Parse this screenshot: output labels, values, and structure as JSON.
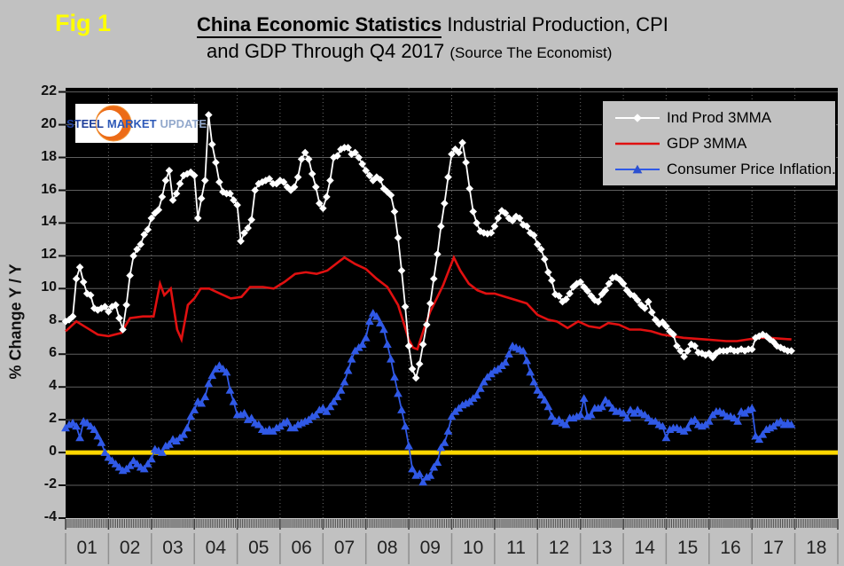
{
  "fig_label": "Fig 1",
  "title": {
    "line1_bold": "China Economic Statistics",
    "line1_rest": " Industrial Production, CPI",
    "line2_main": "and GDP Through Q4 2017 ",
    "line2_source": "(Source The Economist)"
  },
  "logo": {
    "word1": "STEEL",
    "word2": "MARKET",
    "word3": "UPDATE"
  },
  "y_axis": {
    "label": "% Change Y / Y",
    "tick_labels": [
      "22",
      "20",
      "18",
      "16",
      "14",
      "12",
      "10",
      "8",
      "6",
      "4",
      "2",
      "0",
      "-2",
      "-4"
    ]
  },
  "x_axis": {
    "tick_labels": [
      "01",
      "02",
      "03",
      "04",
      "05",
      "06",
      "07",
      "08",
      "09",
      "10",
      "11",
      "12",
      "13",
      "14",
      "15",
      "16",
      "17",
      "18"
    ]
  },
  "colors": {
    "background": "#c1c1c1",
    "plot_background": "#000000",
    "grid": "#5e5e5e",
    "grid_vertical": "#6b6b6b",
    "zero_line": "#FFD700",
    "ind_prod": "#FFFFFF",
    "gdp": "#E01010",
    "cpi": "#3059E6",
    "fig_label": "#FFFF00"
  },
  "chart_data": {
    "type": "line",
    "title": "China Economic Statistics Industrial Production, CPI and GDP Through Q4 2017 (Source The Economist)",
    "ylabel": "% Change Y / Y",
    "ylim": [
      -4,
      22
    ],
    "y_tick_step": 2,
    "x_range_years": [
      2001,
      2019
    ],
    "grid": true,
    "legend_position": "top-right",
    "zero_line": {
      "value": 0,
      "color": "#FFD700"
    },
    "series": [
      {
        "name": "Ind Prod 3MMA",
        "color": "#FFFFFF",
        "marker": "diamond",
        "interval": "monthly",
        "values_by_year": {
          "2001": [
            8.0,
            8.1,
            8.3,
            10.6,
            11.3,
            10.4,
            9.7,
            9.6,
            8.8,
            8.7,
            8.8,
            8.9
          ],
          "2002": [
            8.6,
            8.9,
            9.0,
            8.2,
            7.5,
            9.0,
            10.8,
            12.0,
            12.4,
            12.7,
            13.3,
            13.6
          ],
          "2003": [
            14.3,
            14.6,
            14.8,
            15.6,
            16.6,
            17.2,
            15.4,
            15.8,
            16.4,
            16.9,
            17.0,
            17.1
          ],
          "2004": [
            16.9,
            14.3,
            15.5,
            16.6,
            20.6,
            18.8,
            17.7,
            16.5,
            15.9,
            15.8,
            15.8,
            15.4
          ],
          "2005": [
            15.1,
            12.9,
            13.4,
            13.7,
            14.2,
            16.0,
            16.4,
            16.5,
            16.6,
            16.7,
            16.4,
            16.4
          ],
          "2006": [
            16.6,
            16.5,
            16.2,
            16.0,
            16.2,
            16.8,
            17.9,
            18.3,
            17.9,
            17.0,
            16.2,
            15.2
          ],
          "2007": [
            14.9,
            15.6,
            16.6,
            18.0,
            18.1,
            18.5,
            18.6,
            18.6,
            18.2,
            18.3,
            18.0,
            17.6
          ],
          "2008": [
            17.2,
            16.9,
            16.6,
            16.8,
            16.65,
            16.1,
            15.9,
            15.7,
            14.7,
            13.1,
            11.1,
            8.9
          ],
          "2009": [
            6.5,
            5.1,
            4.55,
            5.4,
            6.6,
            7.8,
            9.1,
            10.6,
            12.1,
            13.8,
            15.2,
            16.8
          ],
          "2010": [
            18.2,
            18.5,
            18.3,
            18.9,
            17.7,
            16.1,
            14.7,
            14.0,
            13.5,
            13.4,
            13.35,
            13.4
          ],
          "2011": [
            13.8,
            14.3,
            14.75,
            14.6,
            14.3,
            14.15,
            14.4,
            14.3,
            13.9,
            13.8,
            13.4,
            13.25
          ],
          "2012": [
            12.7,
            12.4,
            11.8,
            11.0,
            10.5,
            9.65,
            9.55,
            9.2,
            9.35,
            9.7,
            10.1,
            10.3
          ],
          "2013": [
            10.4,
            10.1,
            9.85,
            9.55,
            9.3,
            9.2,
            9.65,
            9.9,
            10.3,
            10.65,
            10.7,
            10.55
          ],
          "2014": [
            10.3,
            9.9,
            9.65,
            9.55,
            9.3,
            9.0,
            8.8,
            9.2,
            8.55,
            8.1,
            7.85,
            7.95
          ],
          "2015": [
            7.7,
            7.4,
            7.2,
            6.5,
            6.2,
            5.85,
            6.2,
            6.6,
            6.5,
            6.1,
            6.05,
            5.95
          ],
          "2016": [
            6.05,
            5.8,
            6.05,
            6.2,
            6.2,
            6.2,
            6.3,
            6.2,
            6.2,
            6.3,
            6.2,
            6.3
          ],
          "2017": [
            6.3,
            7.0,
            7.1,
            7.2,
            7.1,
            6.9,
            6.75,
            6.5,
            6.4,
            6.3,
            6.2,
            6.2
          ]
        }
      },
      {
        "name": "GDP 3MMA",
        "color": "#E01010",
        "marker": "none",
        "interval": "keypoints",
        "points": [
          [
            2001.0,
            7.4
          ],
          [
            2001.25,
            8.0
          ],
          [
            2001.5,
            7.6
          ],
          [
            2001.75,
            7.2
          ],
          [
            2002.0,
            7.1
          ],
          [
            2002.3,
            7.3
          ],
          [
            2002.5,
            8.2
          ],
          [
            2002.8,
            8.3
          ],
          [
            2003.05,
            8.3
          ],
          [
            2003.2,
            10.3
          ],
          [
            2003.3,
            9.6
          ],
          [
            2003.45,
            10.0
          ],
          [
            2003.6,
            7.5
          ],
          [
            2003.7,
            6.9
          ],
          [
            2003.85,
            9.0
          ],
          [
            2004.0,
            9.4
          ],
          [
            2004.15,
            10.0
          ],
          [
            2004.35,
            10.0
          ],
          [
            2004.6,
            9.7
          ],
          [
            2004.85,
            9.4
          ],
          [
            2005.1,
            9.5
          ],
          [
            2005.3,
            10.1
          ],
          [
            2005.6,
            10.1
          ],
          [
            2005.85,
            10.0
          ],
          [
            2006.1,
            10.4
          ],
          [
            2006.35,
            10.9
          ],
          [
            2006.6,
            11.0
          ],
          [
            2006.85,
            10.9
          ],
          [
            2007.1,
            11.1
          ],
          [
            2007.3,
            11.5
          ],
          [
            2007.5,
            11.9
          ],
          [
            2007.75,
            11.5
          ],
          [
            2008.0,
            11.2
          ],
          [
            2008.25,
            10.6
          ],
          [
            2008.5,
            10.1
          ],
          [
            2008.75,
            9.0
          ],
          [
            2009.0,
            6.9
          ],
          [
            2009.1,
            6.4
          ],
          [
            2009.2,
            6.3
          ],
          [
            2009.35,
            7.5
          ],
          [
            2009.5,
            8.6
          ],
          [
            2009.65,
            9.4
          ],
          [
            2009.8,
            10.2
          ],
          [
            2010.05,
            11.9
          ],
          [
            2010.2,
            11.1
          ],
          [
            2010.4,
            10.3
          ],
          [
            2010.6,
            9.9
          ],
          [
            2010.8,
            9.7
          ],
          [
            2011.0,
            9.7
          ],
          [
            2011.25,
            9.5
          ],
          [
            2011.5,
            9.3
          ],
          [
            2011.75,
            9.1
          ],
          [
            2012.0,
            8.4
          ],
          [
            2012.25,
            8.1
          ],
          [
            2012.45,
            8.0
          ],
          [
            2012.7,
            7.6
          ],
          [
            2012.95,
            8.0
          ],
          [
            2013.2,
            7.7
          ],
          [
            2013.45,
            7.6
          ],
          [
            2013.65,
            7.9
          ],
          [
            2013.9,
            7.8
          ],
          [
            2014.15,
            7.5
          ],
          [
            2014.4,
            7.5
          ],
          [
            2014.65,
            7.4
          ],
          [
            2014.9,
            7.2
          ],
          [
            2015.15,
            7.1
          ],
          [
            2015.4,
            7.0
          ],
          [
            2015.65,
            6.95
          ],
          [
            2015.9,
            6.9
          ],
          [
            2016.15,
            6.85
          ],
          [
            2016.4,
            6.8
          ],
          [
            2016.65,
            6.8
          ],
          [
            2016.9,
            6.9
          ],
          [
            2017.15,
            7.0
          ],
          [
            2017.4,
            7.0
          ],
          [
            2017.65,
            6.95
          ],
          [
            2017.92,
            6.9
          ]
        ]
      },
      {
        "name": "Consumer Price Inflation.",
        "color": "#3059E6",
        "marker": "triangle",
        "interval": "monthly",
        "values_by_year": {
          "2001": [
            1.5,
            1.7,
            1.8,
            1.6,
            0.9,
            1.9,
            1.8,
            1.6,
            1.4,
            1.0,
            0.6,
            0.0
          ],
          "2002": [
            -0.3,
            -0.5,
            -0.7,
            -0.9,
            -1.1,
            -1.0,
            -0.8,
            -0.5,
            -0.7,
            -0.9,
            -1.0,
            -0.7
          ],
          "2003": [
            -0.4,
            0.2,
            0.1,
            0.0,
            0.4,
            0.5,
            0.8,
            0.7,
            0.9,
            1.1,
            1.5,
            2.2
          ],
          "2004": [
            2.6,
            3.1,
            3.0,
            3.4,
            4.2,
            4.7,
            5.1,
            5.3,
            5.1,
            4.9,
            3.8,
            3.1
          ],
          "2005": [
            2.3,
            2.3,
            2.4,
            2.0,
            2.1,
            1.8,
            1.7,
            1.4,
            1.3,
            1.4,
            1.3,
            1.5
          ],
          "2006": [
            1.6,
            1.8,
            1.9,
            1.5,
            1.5,
            1.7,
            1.8,
            1.9,
            2.0,
            2.2,
            2.3,
            2.6
          ],
          "2007": [
            2.7,
            2.5,
            2.8,
            3.1,
            3.4,
            3.8,
            4.3,
            5.0,
            5.7,
            6.2,
            6.4,
            6.6
          ],
          "2008": [
            7.0,
            8.0,
            8.5,
            8.3,
            7.9,
            7.5,
            6.6,
            5.7,
            4.6,
            3.6,
            2.6,
            1.6
          ],
          "2009": [
            0.4,
            -1.0,
            -1.4,
            -1.3,
            -1.8,
            -1.5,
            -1.4,
            -0.9,
            -0.6,
            0.3,
            0.6,
            1.3
          ],
          "2010": [
            2.2,
            2.5,
            2.7,
            2.9,
            3.0,
            3.1,
            3.3,
            3.5,
            3.9,
            4.3,
            4.6,
            4.8
          ],
          "2011": [
            5.0,
            5.1,
            5.3,
            5.5,
            6.0,
            6.5,
            6.4,
            6.3,
            6.2,
            5.6,
            4.9,
            4.3
          ],
          "2012": [
            3.8,
            3.5,
            3.2,
            2.8,
            2.2,
            1.9,
            2.0,
            1.8,
            1.7,
            2.1,
            2.1,
            2.2
          ],
          "2013": [
            2.3,
            3.3,
            2.2,
            2.3,
            2.7,
            2.7,
            2.8,
            3.2,
            3.0,
            2.7,
            2.5,
            2.5
          ],
          "2014": [
            2.4,
            2.1,
            2.6,
            2.4,
            2.6,
            2.4,
            2.3,
            2.1,
            1.9,
            1.9,
            1.7,
            1.6
          ],
          "2015": [
            0.9,
            1.4,
            1.5,
            1.5,
            1.4,
            1.3,
            1.5,
            1.9,
            2.0,
            1.7,
            1.6,
            1.7
          ],
          "2016": [
            1.9,
            2.3,
            2.5,
            2.5,
            2.4,
            2.2,
            2.2,
            2.1,
            1.9,
            2.5,
            2.4,
            2.6
          ],
          "2017": [
            2.7,
            1.0,
            0.8,
            1.1,
            1.4,
            1.5,
            1.6,
            1.8,
            1.9,
            1.7,
            1.8,
            1.7
          ]
        }
      }
    ]
  }
}
